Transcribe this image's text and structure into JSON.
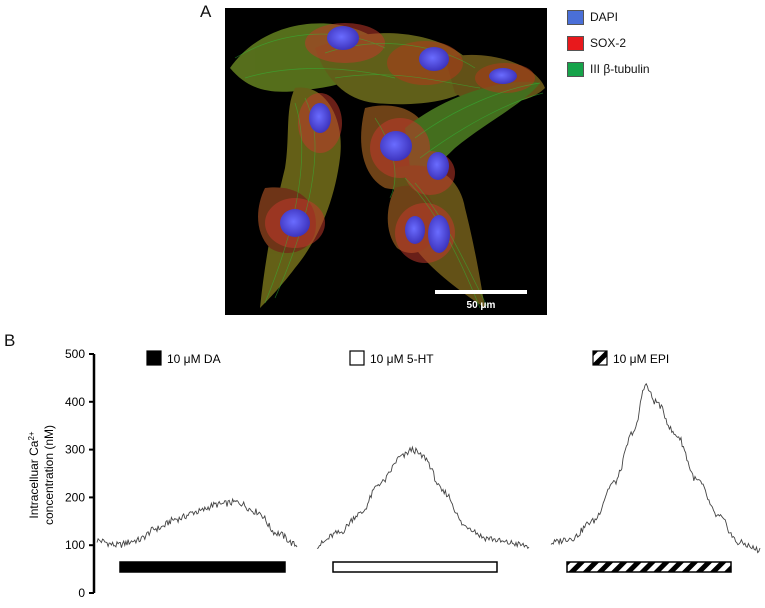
{
  "panel_labels": {
    "a": "A",
    "b": "B"
  },
  "micrograph": {
    "scale_bar_label": "50 μm",
    "channels": [
      {
        "name": "DAPI",
        "color": "#4a6fd8"
      },
      {
        "name": "SOX-2",
        "color": "#e8191c"
      },
      {
        "name": "III β-tubulin",
        "color": "#16a34a"
      }
    ]
  },
  "chart_data": {
    "type": "line",
    "ylabel_line1": "Intracelluar Ca",
    "ylabel_sup": "2+",
    "ylabel_line2": "concentration (nM)",
    "ylim": [
      0,
      500
    ],
    "yticks": [
      0,
      100,
      200,
      300,
      400,
      500
    ],
    "grid": false,
    "series": [
      {
        "name": "10 μM DA",
        "bar_style": "solid",
        "bar_color": "#000000",
        "x": [
          0,
          0.1,
          0.2,
          0.3,
          0.4,
          0.5,
          0.6,
          0.7,
          0.8,
          0.9,
          1.0
        ],
        "values": [
          110,
          100,
          110,
          135,
          155,
          170,
          185,
          190,
          170,
          125,
          100
        ]
      },
      {
        "name": "10 μM 5-HT",
        "bar_style": "open",
        "bar_color": "#ffffff",
        "x": [
          0,
          0.1,
          0.2,
          0.3,
          0.4,
          0.45,
          0.5,
          0.6,
          0.7,
          0.8,
          0.9,
          1.0
        ],
        "values": [
          100,
          125,
          165,
          230,
          285,
          300,
          285,
          210,
          140,
          115,
          105,
          98
        ]
      },
      {
        "name": "10 μM EPI",
        "bar_style": "hatched",
        "bar_color": "#000000",
        "x": [
          0,
          0.1,
          0.2,
          0.3,
          0.4,
          0.45,
          0.5,
          0.6,
          0.7,
          0.8,
          0.9,
          1.0
        ],
        "values": [
          105,
          115,
          150,
          230,
          340,
          435,
          400,
          330,
          235,
          160,
          105,
          90
        ]
      }
    ]
  }
}
